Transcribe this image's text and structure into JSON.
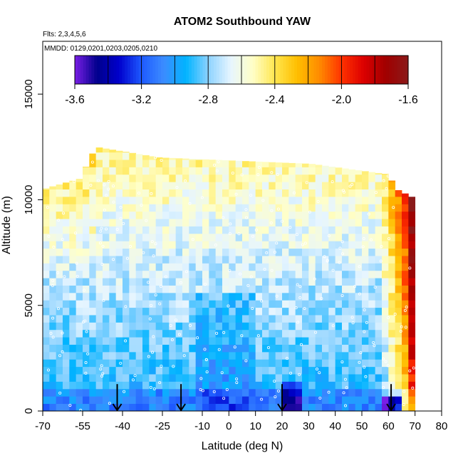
{
  "chart_data": {
    "type": "heatmap",
    "title": "ATOM2 Southbound YAW",
    "subtitle_flights": "Flts: 2,3,4,5,6",
    "subtitle_dates": "MMDD: 0129,0201,0203,0205,0210",
    "xlabel": "Latitude (deg N)",
    "ylabel": "Altitude (m)",
    "xlim": [
      -70,
      80
    ],
    "ylim": [
      0,
      17500
    ],
    "x_ticks": [
      -70,
      -55,
      -40,
      -25,
      -10,
      0,
      10,
      20,
      30,
      40,
      50,
      60,
      70,
      80
    ],
    "y_ticks": [
      0,
      5000,
      10000,
      15000
    ],
    "colorbar": {
      "min": -3.6,
      "max": -1.6,
      "ticks": [
        -3.6,
        -3.2,
        -2.8,
        -2.4,
        -2.0,
        -1.6
      ],
      "colors": [
        "#7a1ee6",
        "#00008c",
        "#0000cd",
        "#1e5aff",
        "#3c8cff",
        "#00b4ff",
        "#8cd2ff",
        "#e6f5ff",
        "#ffffc8",
        "#ffe650",
        "#ffbe00",
        "#ff8c00",
        "#ff3200",
        "#dc0000",
        "#a00000",
        "#8b1a1a"
      ]
    },
    "grid": false,
    "sample_marker_color": "#ffffff",
    "arrow_latitudes": [
      -42,
      -18,
      20,
      61
    ],
    "profile_top_altitude_by_latitude": [
      {
        "lat": -70,
        "alt": 10500
      },
      {
        "lat": -56,
        "alt": 11000
      },
      {
        "lat": -50,
        "alt": 12500
      },
      {
        "lat": -26,
        "alt": 12000
      },
      {
        "lat": 31,
        "alt": 11700
      },
      {
        "lat": 60,
        "alt": 11200
      },
      {
        "lat": 63,
        "alt": 10500
      },
      {
        "lat": 71,
        "alt": 10000
      }
    ]
  }
}
